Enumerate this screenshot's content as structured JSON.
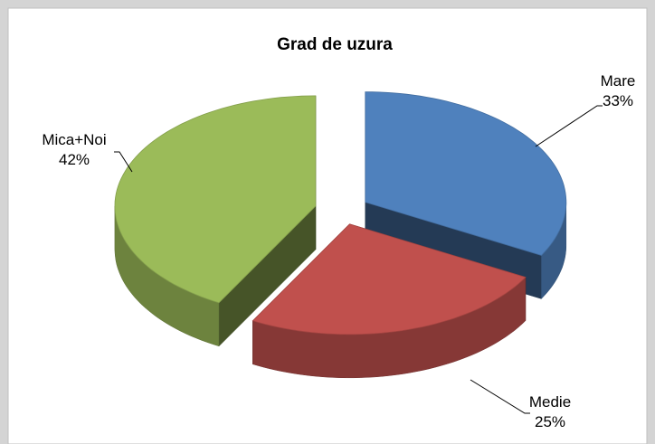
{
  "chart_data": {
    "type": "pie",
    "title": "Grad de uzura",
    "categories": [
      "Mare",
      "Medie",
      "Mica+Noi"
    ],
    "values": [
      33,
      25,
      42
    ],
    "value_labels": [
      "33%",
      "25%",
      "42%"
    ],
    "colors": [
      "#4f81bd",
      "#c0504d",
      "#9bbb59"
    ]
  }
}
